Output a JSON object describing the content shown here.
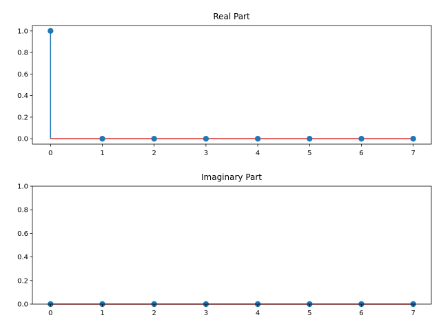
{
  "chart_data": [
    {
      "type": "stem",
      "title": "Real Part",
      "xlabel": "",
      "ylabel": "",
      "x": [
        0,
        1,
        2,
        3,
        4,
        5,
        6,
        7
      ],
      "values": [
        1.0,
        0.0,
        0.0,
        0.0,
        0.0,
        0.0,
        0.0,
        0.0
      ],
      "xlim": [
        -0.35,
        7.35
      ],
      "ylim": [
        -0.05,
        1.05
      ],
      "xticks": [
        "0",
        "1",
        "2",
        "3",
        "4",
        "5",
        "6",
        "7"
      ],
      "yticks": [
        "0.0",
        "0.2",
        "0.4",
        "0.6",
        "0.8",
        "1.0"
      ],
      "grid": false,
      "stem_color": "#1f77b4",
      "marker_color": "#1f77b4",
      "baseline_color": "#d62728"
    },
    {
      "type": "stem",
      "title": "Imaginary Part",
      "xlabel": "",
      "ylabel": "",
      "x": [
        0,
        1,
        2,
        3,
        4,
        5,
        6,
        7
      ],
      "values": [
        0.0,
        0.0,
        0.0,
        0.0,
        0.0,
        0.0,
        0.0,
        0.0
      ],
      "xlim": [
        -0.35,
        7.35
      ],
      "ylim": [
        0.0,
        1.0
      ],
      "xticks": [
        "0",
        "1",
        "2",
        "3",
        "4",
        "5",
        "6",
        "7"
      ],
      "yticks": [
        "0.0",
        "0.2",
        "0.4",
        "0.6",
        "0.8",
        "1.0"
      ],
      "grid": false,
      "stem_color": "#1f77b4",
      "marker_color": "#1f77b4",
      "baseline_color": "#d62728"
    }
  ]
}
